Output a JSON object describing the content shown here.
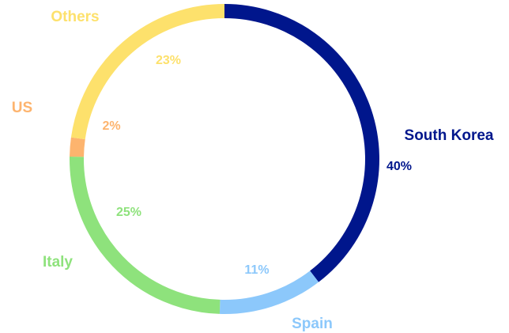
{
  "chart_data": {
    "type": "donut",
    "categories": [
      "South Korea",
      "Spain",
      "Italy",
      "US",
      "Others"
    ],
    "values": [
      40,
      11,
      25,
      2,
      23
    ],
    "value_labels": [
      "40%",
      "11%",
      "25%",
      "2%",
      "23%"
    ],
    "colors": [
      "#00168c",
      "#8cc8fb",
      "#8ee27c",
      "#fdb46e",
      "#fde16c"
    ]
  }
}
